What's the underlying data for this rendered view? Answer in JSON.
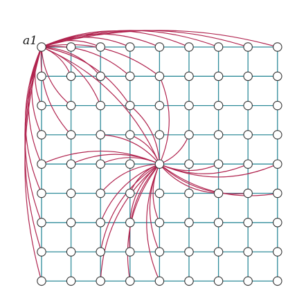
{
  "diagram": {
    "grid": {
      "rows": 9,
      "cols": 9
    },
    "label": "a1",
    "colors": {
      "grid_edge": "#2e8b99",
      "long_edge": "#b0234e",
      "node_stroke": "#333333",
      "node_fill": "#ffffff"
    },
    "hubs": [
      {
        "name": "a1",
        "row": 0,
        "col": 0
      },
      {
        "name": "center",
        "row": 4,
        "col": 4
      }
    ],
    "long_edges": {
      "a1": [
        [
          0,
          2
        ],
        [
          0,
          3
        ],
        [
          0,
          4
        ],
        [
          0,
          5
        ],
        [
          0,
          6
        ],
        [
          0,
          7
        ],
        [
          0,
          8
        ],
        [
          1,
          1
        ],
        [
          1,
          2
        ],
        [
          1,
          3
        ],
        [
          1,
          4
        ],
        [
          2,
          1
        ],
        [
          2,
          2
        ],
        [
          2,
          3
        ],
        [
          3,
          1
        ],
        [
          2,
          0
        ],
        [
          3,
          0
        ],
        [
          4,
          0
        ],
        [
          5,
          0
        ],
        [
          6,
          0
        ],
        [
          7,
          0
        ],
        [
          8,
          0
        ],
        [
          4,
          4
        ]
      ],
      "center": [
        [
          4,
          0
        ],
        [
          4,
          1
        ],
        [
          4,
          2
        ],
        [
          3,
          2
        ],
        [
          3,
          3
        ],
        [
          2,
          3
        ],
        [
          1,
          4
        ],
        [
          3,
          5
        ],
        [
          4,
          6
        ],
        [
          4,
          7
        ],
        [
          4,
          8
        ],
        [
          5,
          6
        ],
        [
          5,
          7
        ],
        [
          5,
          8
        ],
        [
          5,
          3
        ],
        [
          6,
          3
        ],
        [
          7,
          3
        ],
        [
          8,
          3
        ],
        [
          6,
          4
        ],
        [
          7,
          4
        ],
        [
          8,
          4
        ],
        [
          5,
          2
        ],
        [
          6,
          2
        ],
        [
          7,
          2
        ],
        [
          8,
          2
        ]
      ]
    }
  }
}
